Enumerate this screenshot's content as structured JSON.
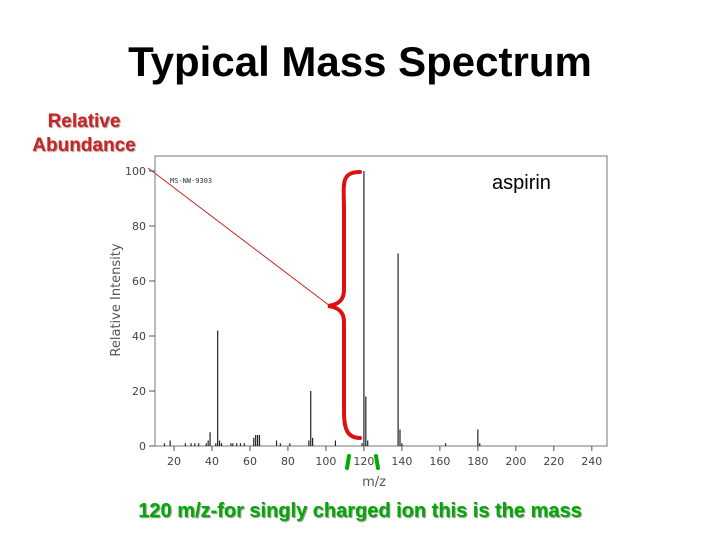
{
  "slide": {
    "title": "Typical Mass Spectrum",
    "y_annotation": "Relative\nAbundance",
    "compound_label": "aspirin",
    "caption": "120 m/z-for singly charged ion this is the mass"
  },
  "colors": {
    "title": "#000000",
    "annotation": "#cc2222",
    "caption": "#00aa00",
    "brace": "#dd1111",
    "peaks": "#222222"
  },
  "chart_data": {
    "type": "bar",
    "spectrum_code": "MS-NW-9303",
    "xlabel": "m/z",
    "ylabel": "Relative Intensity",
    "xlim": [
      10,
      248
    ],
    "ylim": [
      0,
      100
    ],
    "x_ticks": [
      20,
      40,
      60,
      80,
      100,
      120,
      140,
      160,
      180,
      200,
      220,
      240
    ],
    "y_ticks": [
      0,
      20,
      40,
      60,
      80,
      100
    ],
    "grid": false,
    "peaks": [
      {
        "mz": 15,
        "intensity": 1
      },
      {
        "mz": 18,
        "intensity": 2
      },
      {
        "mz": 26,
        "intensity": 1
      },
      {
        "mz": 29,
        "intensity": 1
      },
      {
        "mz": 31,
        "intensity": 1
      },
      {
        "mz": 33,
        "intensity": 1
      },
      {
        "mz": 37,
        "intensity": 1
      },
      {
        "mz": 38,
        "intensity": 2
      },
      {
        "mz": 39,
        "intensity": 5
      },
      {
        "mz": 42,
        "intensity": 1
      },
      {
        "mz": 43,
        "intensity": 42
      },
      {
        "mz": 44,
        "intensity": 2
      },
      {
        "mz": 45,
        "intensity": 1
      },
      {
        "mz": 50,
        "intensity": 1
      },
      {
        "mz": 51,
        "intensity": 1
      },
      {
        "mz": 53,
        "intensity": 1
      },
      {
        "mz": 55,
        "intensity": 1
      },
      {
        "mz": 57,
        "intensity": 1
      },
      {
        "mz": 62,
        "intensity": 3
      },
      {
        "mz": 63,
        "intensity": 4
      },
      {
        "mz": 64,
        "intensity": 4
      },
      {
        "mz": 65,
        "intensity": 4
      },
      {
        "mz": 74,
        "intensity": 2
      },
      {
        "mz": 76,
        "intensity": 1
      },
      {
        "mz": 81,
        "intensity": 1
      },
      {
        "mz": 91,
        "intensity": 2
      },
      {
        "mz": 92,
        "intensity": 20
      },
      {
        "mz": 93,
        "intensity": 3
      },
      {
        "mz": 105,
        "intensity": 2
      },
      {
        "mz": 119,
        "intensity": 1
      },
      {
        "mz": 120,
        "intensity": 100
      },
      {
        "mz": 121,
        "intensity": 18
      },
      {
        "mz": 122,
        "intensity": 2
      },
      {
        "mz": 138,
        "intensity": 70
      },
      {
        "mz": 139,
        "intensity": 6
      },
      {
        "mz": 140,
        "intensity": 1
      },
      {
        "mz": 163,
        "intensity": 1
      },
      {
        "mz": 180,
        "intensity": 6
      },
      {
        "mz": 181,
        "intensity": 1
      }
    ]
  }
}
